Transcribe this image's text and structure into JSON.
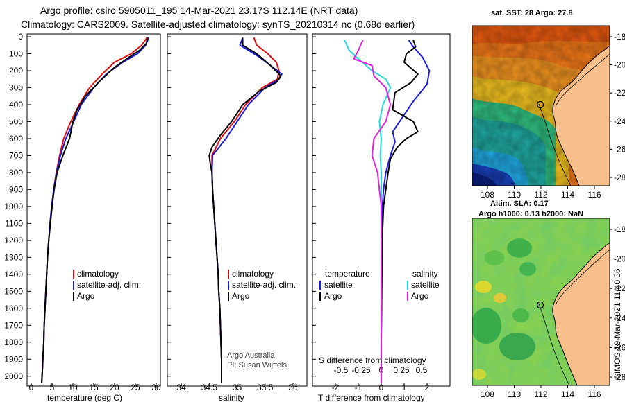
{
  "header": {
    "line1": "Argo profile: csiro 5905011_195 14-Mar-2021 23.17S 112.14E (NRT data)",
    "line2": "Climatology: CARS2009. Satellite-adjusted climatology: synTS_20210314.nc (0.68d earlier)"
  },
  "colors": {
    "climatology": "#e01010",
    "satellite": "#1a1ae0",
    "argo": "#000000",
    "s_satellite": "#20d8d8",
    "s_argo": "#e020e0"
  },
  "depth_axis": {
    "ticks": [
      0,
      100,
      200,
      300,
      400,
      500,
      600,
      700,
      800,
      900,
      1000,
      1100,
      1200,
      1300,
      1400,
      1500,
      1600,
      1700,
      1800,
      1900,
      2000
    ],
    "range": [
      0,
      2050
    ]
  },
  "chart_data": [
    {
      "type": "line",
      "name": "temperature-panel",
      "xlabel": "temperature (deg C)",
      "xlim": [
        -1,
        31
      ],
      "xticks": [
        0,
        5,
        10,
        15,
        20,
        25,
        30
      ],
      "ylabel": "depth",
      "ylim": [
        2050,
        0
      ],
      "legend": [
        "climatology",
        "satellite-adj. clim.",
        "Argo"
      ],
      "series": [
        {
          "name": "climatology",
          "color": "#e01010",
          "points": [
            [
              27.8,
              5
            ],
            [
              26.5,
              50
            ],
            [
              24,
              100
            ],
            [
              20,
              150
            ],
            [
              17,
              220
            ],
            [
              14,
              300
            ],
            [
              11.5,
              400
            ],
            [
              9.5,
              500
            ],
            [
              7.8,
              600
            ],
            [
              6.8,
              700
            ],
            [
              6,
              800
            ],
            [
              5.4,
              900
            ],
            [
              4.9,
              1000
            ],
            [
              4.5,
              1100
            ],
            [
              4.2,
              1200
            ],
            [
              3.9,
              1300
            ],
            [
              3.7,
              1400
            ],
            [
              3.5,
              1500
            ],
            [
              3.3,
              1600
            ],
            [
              3.1,
              1700
            ],
            [
              3,
              1800
            ],
            [
              2.8,
              1900
            ],
            [
              2.6,
              2000
            ],
            [
              2.5,
              2040
            ]
          ]
        },
        {
          "name": "satellite-adj. clim.",
          "color": "#1a1ae0",
          "points": [
            [
              28.2,
              5
            ],
            [
              27.5,
              50
            ],
            [
              25.5,
              100
            ],
            [
              22,
              150
            ],
            [
              18,
              220
            ],
            [
              15,
              300
            ],
            [
              12,
              400
            ],
            [
              10.2,
              500
            ],
            [
              8.3,
              600
            ],
            [
              7,
              700
            ],
            [
              6.1,
              800
            ],
            [
              5.4,
              900
            ],
            [
              4.9,
              1000
            ],
            [
              4.5,
              1100
            ],
            [
              4.2,
              1200
            ],
            [
              3.9,
              1300
            ],
            [
              3.7,
              1400
            ],
            [
              3.5,
              1500
            ],
            [
              3.3,
              1600
            ],
            [
              3.1,
              1700
            ],
            [
              3,
              1800
            ],
            [
              2.8,
              1900
            ],
            [
              2.6,
              2000
            ],
            [
              2.5,
              2040
            ]
          ]
        },
        {
          "name": "Argo",
          "color": "#000000",
          "points": [
            [
              27.9,
              5
            ],
            [
              27.6,
              40
            ],
            [
              26,
              80
            ],
            [
              23.5,
              120
            ],
            [
              20,
              180
            ],
            [
              16.5,
              260
            ],
            [
              13,
              350
            ],
            [
              11,
              430
            ],
            [
              10,
              500
            ],
            [
              9.2,
              600
            ],
            [
              7.6,
              700
            ],
            [
              6.2,
              800
            ],
            [
              5.5,
              900
            ],
            [
              5,
              1000
            ],
            [
              4.6,
              1100
            ],
            [
              4.2,
              1200
            ],
            [
              3.9,
              1300
            ],
            [
              3.7,
              1400
            ],
            [
              3.5,
              1500
            ],
            [
              3.3,
              1600
            ],
            [
              3.1,
              1700
            ],
            [
              3,
              1800
            ],
            [
              2.8,
              1900
            ],
            [
              2.6,
              2000
            ],
            [
              2.5,
              2040
            ]
          ]
        }
      ]
    },
    {
      "type": "line",
      "name": "salinity-panel",
      "xlabel": "salinity",
      "xlim": [
        33.75,
        36.25
      ],
      "xticks": [
        34,
        34.5,
        35,
        35.5,
        36
      ],
      "ylabel": "depth",
      "ylim": [
        2050,
        0
      ],
      "legend": [
        "climatology",
        "satellite-adj. clim.",
        "Argo"
      ],
      "credit": [
        "Argo Australia",
        "PI: Susan Wijffels"
      ],
      "series": [
        {
          "name": "climatology",
          "color": "#e01010",
          "points": [
            [
              35.3,
              5
            ],
            [
              35.35,
              50
            ],
            [
              35.55,
              100
            ],
            [
              35.7,
              150
            ],
            [
              35.75,
              200
            ],
            [
              35.72,
              250
            ],
            [
              35.45,
              300
            ],
            [
              35.15,
              400
            ],
            [
              34.95,
              500
            ],
            [
              34.7,
              600
            ],
            [
              34.55,
              700
            ],
            [
              34.55,
              800
            ],
            [
              34.56,
              900
            ],
            [
              34.58,
              1000
            ],
            [
              34.6,
              1100
            ],
            [
              34.62,
              1200
            ],
            [
              34.64,
              1300
            ],
            [
              34.66,
              1400
            ],
            [
              34.67,
              1500
            ],
            [
              34.69,
              1600
            ],
            [
              34.7,
              1700
            ],
            [
              34.71,
              1800
            ],
            [
              34.72,
              1900
            ],
            [
              34.72,
              2000
            ],
            [
              34.72,
              2040
            ]
          ]
        },
        {
          "name": "satellite-adj. clim.",
          "color": "#1a1ae0",
          "points": [
            [
              35.1,
              5
            ],
            [
              35.05,
              50
            ],
            [
              35.4,
              120
            ],
            [
              35.8,
              220
            ],
            [
              35.75,
              250
            ],
            [
              35.5,
              300
            ],
            [
              35.2,
              400
            ],
            [
              35.0,
              500
            ],
            [
              34.8,
              600
            ],
            [
              34.56,
              700
            ],
            [
              34.55,
              800
            ],
            [
              34.56,
              900
            ],
            [
              34.58,
              1000
            ],
            [
              34.6,
              1100
            ],
            [
              34.62,
              1200
            ],
            [
              34.64,
              1300
            ],
            [
              34.66,
              1400
            ],
            [
              34.67,
              1500
            ],
            [
              34.69,
              1600
            ],
            [
              34.7,
              1700
            ],
            [
              34.71,
              1800
            ],
            [
              34.72,
              1900
            ],
            [
              34.72,
              2000
            ],
            [
              34.72,
              2040
            ]
          ]
        },
        {
          "name": "Argo",
          "color": "#000000",
          "points": [
            [
              35.1,
              5
            ],
            [
              35.1,
              50
            ],
            [
              35.35,
              100
            ],
            [
              35.6,
              170
            ],
            [
              35.78,
              230
            ],
            [
              35.7,
              270
            ],
            [
              35.4,
              320
            ],
            [
              35.1,
              400
            ],
            [
              34.9,
              500
            ],
            [
              34.7,
              580
            ],
            [
              34.55,
              650
            ],
            [
              34.5,
              700
            ],
            [
              34.52,
              750
            ],
            [
              34.55,
              800
            ],
            [
              34.56,
              900
            ],
            [
              34.58,
              1000
            ],
            [
              34.6,
              1100
            ],
            [
              34.62,
              1200
            ],
            [
              34.64,
              1300
            ],
            [
              34.66,
              1400
            ],
            [
              34.67,
              1500
            ],
            [
              34.69,
              1600
            ],
            [
              34.7,
              1700
            ],
            [
              34.71,
              1800
            ],
            [
              34.72,
              1900
            ],
            [
              34.72,
              2000
            ],
            [
              34.72,
              2040
            ]
          ]
        }
      ]
    },
    {
      "type": "line",
      "name": "difference-panel",
      "xlabel": "T difference from climatology",
      "xlim": [
        -3,
        3
      ],
      "xticks": [
        -2,
        -1,
        0,
        1,
        2
      ],
      "top_xlabel": "S difference from climatology",
      "top_xticks": [
        -0.5,
        -0.25,
        0,
        0.25,
        0.5
      ],
      "ylabel": "depth",
      "ylim": [
        2050,
        0
      ],
      "legend_left_title": "temperature",
      "legend_right_title": "salinity",
      "legend_left": [
        "satellite",
        "Argo"
      ],
      "legend_right": [
        "satellite",
        "Argo"
      ],
      "series": [
        {
          "name": "T satellite",
          "color": "#1a1ae0",
          "points": [
            [
              1.2,
              20
            ],
            [
              1.4,
              60
            ],
            [
              1.8,
              120
            ],
            [
              2.1,
              200
            ],
            [
              2,
              280
            ],
            [
              1.4,
              380
            ],
            [
              0.8,
              500
            ],
            [
              0.5,
              560
            ],
            [
              0.6,
              620
            ],
            [
              0.4,
              700
            ],
            [
              0.2,
              800
            ],
            [
              0.1,
              900
            ],
            [
              0.05,
              1000
            ],
            [
              0.02,
              1200
            ],
            [
              0.01,
              1500
            ],
            [
              0,
              1800
            ],
            [
              0,
              2040
            ]
          ]
        },
        {
          "name": "T Argo",
          "color": "#000000",
          "points": [
            [
              1.4,
              20
            ],
            [
              1.5,
              60
            ],
            [
              1.1,
              100
            ],
            [
              1,
              150
            ],
            [
              1.6,
              220
            ],
            [
              1.3,
              270
            ],
            [
              0.6,
              330
            ],
            [
              0.5,
              430
            ],
            [
              1.4,
              500
            ],
            [
              1.6,
              560
            ],
            [
              1.1,
              600
            ],
            [
              0.7,
              650
            ],
            [
              0.4,
              720
            ],
            [
              0.3,
              800
            ],
            [
              0.2,
              900
            ],
            [
              0.1,
              1000
            ],
            [
              0.04,
              1200
            ],
            [
              0.02,
              1500
            ],
            [
              0,
              1800
            ],
            [
              0,
              2040
            ]
          ]
        },
        {
          "name": "S satellite",
          "color": "#20d8d8",
          "points": [
            [
              -0.4,
              20
            ],
            [
              -0.35,
              80
            ],
            [
              -0.25,
              130
            ],
            [
              -0.1,
              200
            ],
            [
              0.05,
              250
            ],
            [
              0.1,
              300
            ],
            [
              0.02,
              400
            ],
            [
              -0.02,
              500
            ],
            [
              0,
              600
            ],
            [
              -0.01,
              700
            ],
            [
              0,
              800
            ],
            [
              0,
              1000
            ],
            [
              0,
              1300
            ],
            [
              0,
              1600
            ],
            [
              0,
              1900
            ],
            [
              0,
              2040
            ]
          ]
        },
        {
          "name": "S Argo",
          "color": "#e020e0",
          "points": [
            [
              -0.2,
              20
            ],
            [
              -0.25,
              80
            ],
            [
              -0.3,
              130
            ],
            [
              -0.1,
              170
            ],
            [
              -0.08,
              230
            ],
            [
              0.05,
              300
            ],
            [
              0.1,
              400
            ],
            [
              0.05,
              500
            ],
            [
              -0.08,
              600
            ],
            [
              -0.1,
              700
            ],
            [
              -0.04,
              800
            ],
            [
              0,
              1000
            ],
            [
              0,
              1300
            ],
            [
              0,
              1600
            ],
            [
              0,
              1900
            ],
            [
              0,
              2040
            ]
          ]
        }
      ]
    }
  ],
  "map_top": {
    "title": "sat. SST: 28 Argo: 27.8",
    "lat_ticks": [
      "-18",
      "-20",
      "-22",
      "-24",
      "-26",
      "-28"
    ],
    "lon_ticks": [
      "108",
      "110",
      "112",
      "114",
      "116"
    ]
  },
  "map_bottom": {
    "title_line1": "Altim. SLA: 0.17",
    "title_line2": "Argo h1000: 0.13 h2000: NaN",
    "lat_ticks": [
      "-18",
      "-20",
      "-22",
      "-24",
      "-26",
      "-28"
    ],
    "lon_ticks": [
      "108",
      "110",
      "112",
      "114",
      "116"
    ]
  },
  "stamp": "©IMOS 19-Mar-2021 11:40:36"
}
